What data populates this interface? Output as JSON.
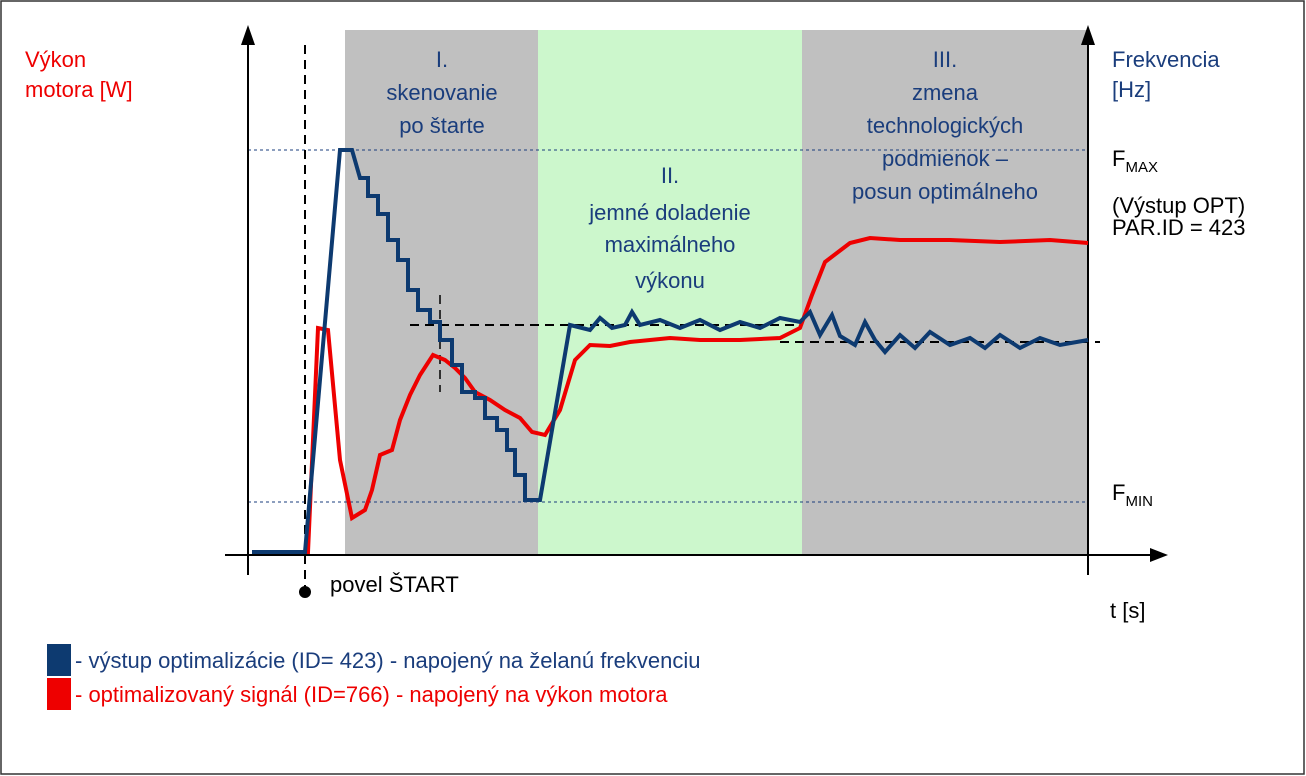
{
  "left_axis": {
    "label": [
      "Výkon",
      "motora [W]"
    ]
  },
  "right_axis": {
    "label": [
      "Frekvencia",
      "[Hz]"
    ]
  },
  "phases": [
    {
      "label": [
        "I.",
        "skenovanie",
        "po štarte"
      ]
    },
    {
      "label": [
        "II.",
        "jemné doladenie",
        "maximálneho",
        "výkonu"
      ]
    },
    {
      "label": [
        "III.",
        "zmena",
        "technologických",
        "podmienok –",
        "posun optimálneho"
      ]
    }
  ],
  "f_max": {
    "main": "F",
    "sub": "MAX"
  },
  "f_min": {
    "main": "F",
    "sub": "MIN"
  },
  "output_note": [
    "(Výstup OPT)",
    "PAR.ID = 423"
  ],
  "start_label": "povel ŠTART",
  "time_label": "t [s]",
  "legend": [
    "- výstup optimalizácie (ID= 423) - napojený na želanú frekvenciu",
    "- optimalizovaný signál (ID=766) - napojený na výkon motora"
  ]
}
